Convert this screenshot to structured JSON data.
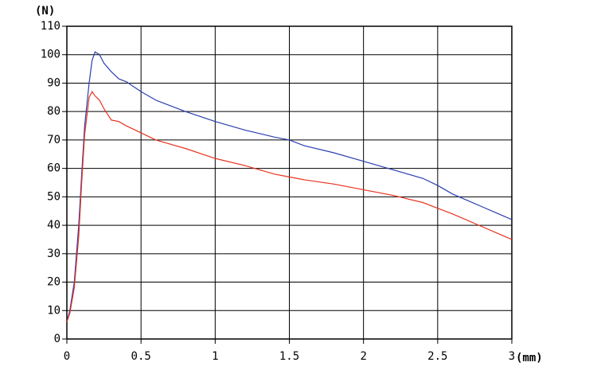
{
  "chart_data": {
    "type": "line",
    "y_label": "(N)",
    "x_label": "(mm)",
    "x": [
      0,
      0.02,
      0.05,
      0.08,
      0.1,
      0.12,
      0.15,
      0.17,
      0.19,
      0.22,
      0.25,
      0.3,
      0.35,
      0.4,
      0.5,
      0.6,
      0.7,
      0.8,
      1.0,
      1.2,
      1.4,
      1.5,
      1.6,
      1.8,
      2.0,
      2.2,
      2.4,
      2.5,
      2.6,
      2.8,
      3.0
    ],
    "series": [
      {
        "color": "#2a3fb0",
        "values": [
          6,
          10,
          20,
          40,
          58,
          75,
          90,
          98,
          101,
          100,
          97,
          94,
          91.5,
          90.5,
          87,
          84,
          82,
          80,
          76.5,
          73.5,
          71,
          70,
          68,
          65.5,
          62.5,
          59.5,
          56.5,
          54,
          51,
          46.5,
          42
        ]
      },
      {
        "color": "#e8321e",
        "values": [
          6,
          9,
          18,
          36,
          55,
          72,
          85,
          87,
          85.5,
          84,
          81,
          77,
          76.5,
          75,
          72.5,
          70,
          68.5,
          67,
          63.5,
          61,
          58,
          57,
          56,
          54.5,
          52.5,
          50.5,
          48,
          46,
          44,
          39.5,
          35
        ]
      }
    ],
    "xlim": [
      0,
      3
    ],
    "xticks": [
      0,
      0.5,
      1,
      1.5,
      2,
      2.5,
      3
    ],
    "ylim": [
      0,
      110
    ],
    "yticks": [
      0,
      10,
      20,
      30,
      40,
      50,
      60,
      70,
      80,
      90,
      100,
      110
    ],
    "grid": true
  }
}
